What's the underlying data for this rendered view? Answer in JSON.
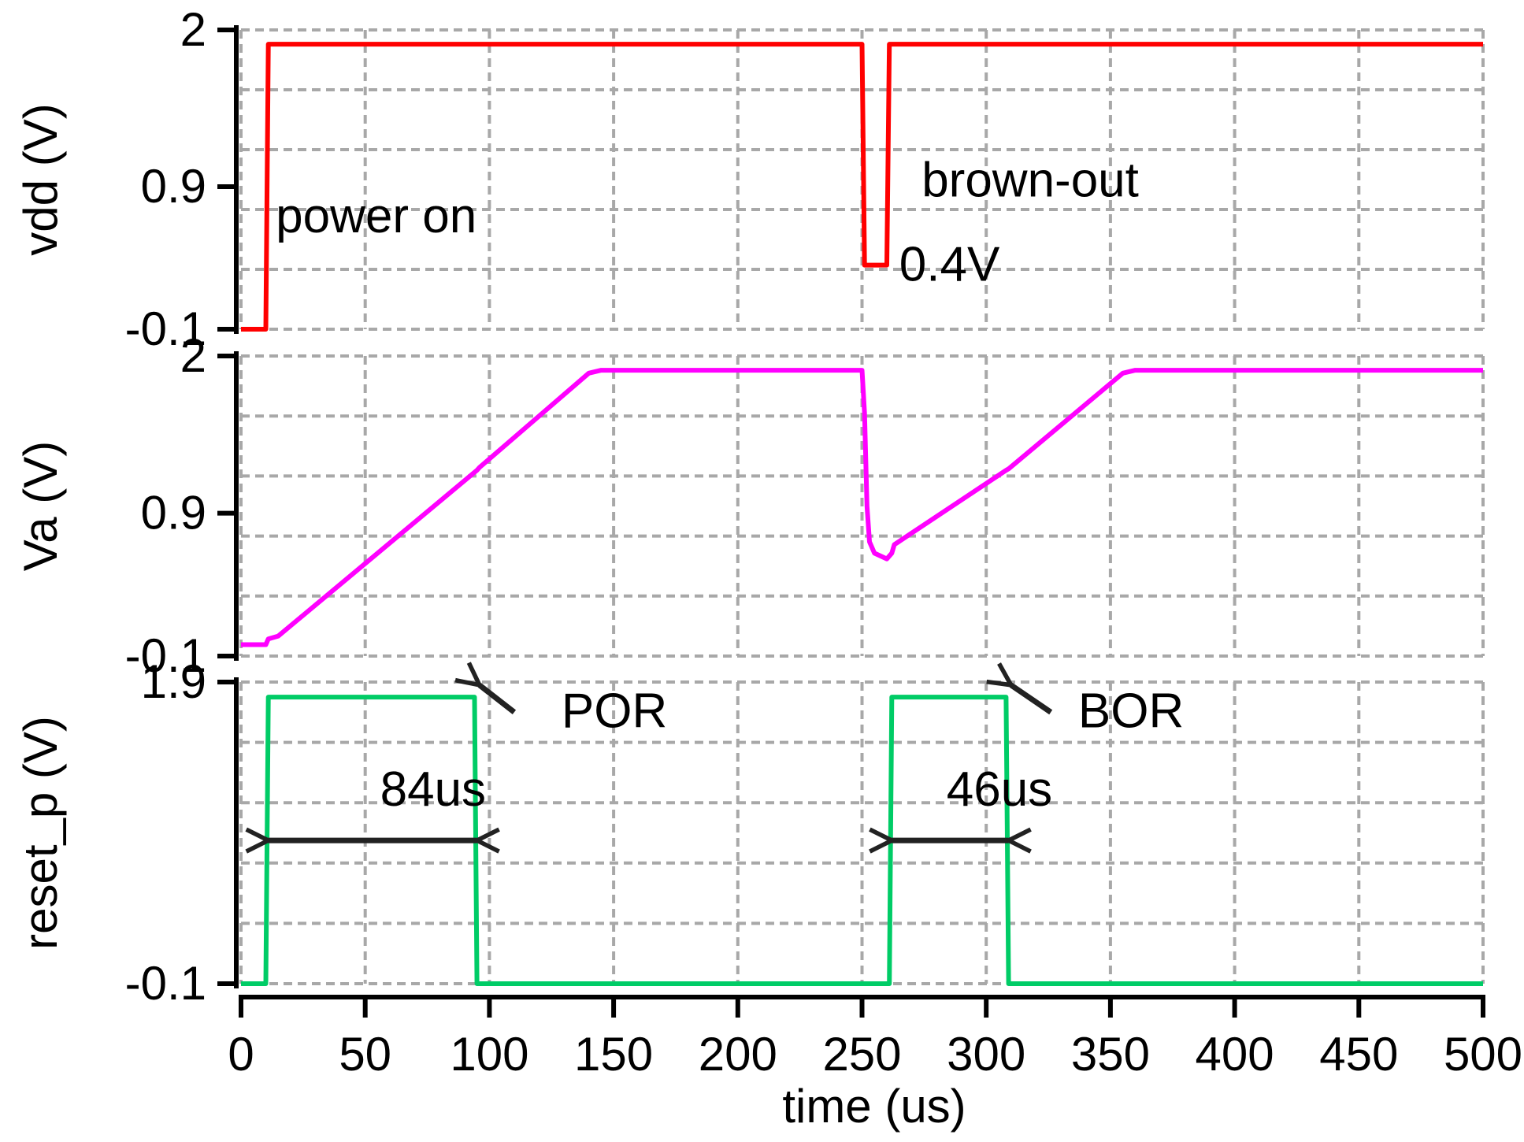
{
  "chart_data": {
    "type": "line",
    "x_axis": {
      "label": "time (us)",
      "range": [
        0,
        500
      ],
      "ticks": [
        0,
        50,
        100,
        150,
        200,
        250,
        300,
        350,
        400,
        450,
        500
      ],
      "tick_labels": [
        "0",
        "50",
        "100",
        "150",
        "200",
        "250",
        "300",
        "350",
        "400",
        "450",
        "500"
      ]
    },
    "grid": true,
    "panels": [
      {
        "id": "vdd",
        "ylabel": "vdd (V)",
        "y_range": [
          -0.1,
          2.0
        ],
        "ticks": [
          -0.1,
          0.9,
          2.0
        ],
        "tick_labels": [
          "-0.1",
          "0.9",
          "2"
        ],
        "color": "#ff0000",
        "x": [
          0,
          10,
          11,
          250,
          251,
          260,
          261,
          500
        ],
        "y": [
          -0.1,
          -0.1,
          1.9,
          1.9,
          0.35,
          0.35,
          1.9,
          1.9
        ],
        "annotations": [
          {
            "text": "power on",
            "x": 14,
            "y": 0.58
          },
          {
            "text": "brown-out",
            "x": 274,
            "y": 0.83
          },
          {
            "text": "0.4V",
            "x": 265,
            "y": 0.24
          }
        ]
      },
      {
        "id": "Va",
        "ylabel": "Va (V)",
        "y_range": [
          -0.1,
          2.0
        ],
        "ticks": [
          -0.1,
          0.9,
          2.0
        ],
        "tick_labels": [
          "-0.1",
          "0.9",
          "2"
        ],
        "color": "#ff00ff",
        "x": [
          0,
          10,
          11,
          15,
          95,
          96,
          140,
          145,
          250,
          251,
          252,
          253,
          255,
          260,
          262,
          263,
          308,
          309,
          355,
          360,
          500
        ],
        "y": [
          -0.02,
          -0.02,
          0.02,
          0.04,
          1.2,
          1.22,
          1.88,
          1.9,
          1.9,
          1.6,
          0.95,
          0.7,
          0.62,
          0.58,
          0.62,
          0.68,
          1.2,
          1.21,
          1.88,
          1.9,
          1.9
        ]
      },
      {
        "id": "reset_p",
        "ylabel": "reset_p (V)",
        "y_range": [
          -0.1,
          1.9
        ],
        "ticks": [
          -0.1,
          1.9
        ],
        "tick_labels": [
          "-0.1",
          "1.9"
        ],
        "color": "#00cc66",
        "x": [
          0,
          10,
          11,
          94,
          95,
          261,
          262,
          308,
          309,
          500
        ],
        "y": [
          -0.1,
          -0.1,
          1.8,
          1.8,
          -0.1,
          -0.1,
          1.8,
          1.8,
          -0.1,
          -0.1
        ],
        "annotations": [
          {
            "text": "POR",
            "x": 129,
            "y": 1.6
          },
          {
            "text": "BOR",
            "x": 337,
            "y": 1.6
          },
          {
            "text": "84us",
            "x": 56,
            "y": 1.08
          },
          {
            "text": "46us",
            "x": 284,
            "y": 1.08
          }
        ],
        "arrows": [
          {
            "from": [
              96,
              1.88
            ],
            "to": [
              110,
              1.7
            ],
            "head": "start"
          },
          {
            "from": [
              310,
              1.88
            ],
            "to": [
              326,
              1.7
            ],
            "head": "start"
          },
          {
            "from": [
              11,
              0.85
            ],
            "to": [
              95,
              0.85
            ],
            "head": "both"
          },
          {
            "from": [
              262,
              0.85
            ],
            "to": [
              309,
              0.85
            ],
            "head": "both"
          }
        ]
      }
    ]
  }
}
